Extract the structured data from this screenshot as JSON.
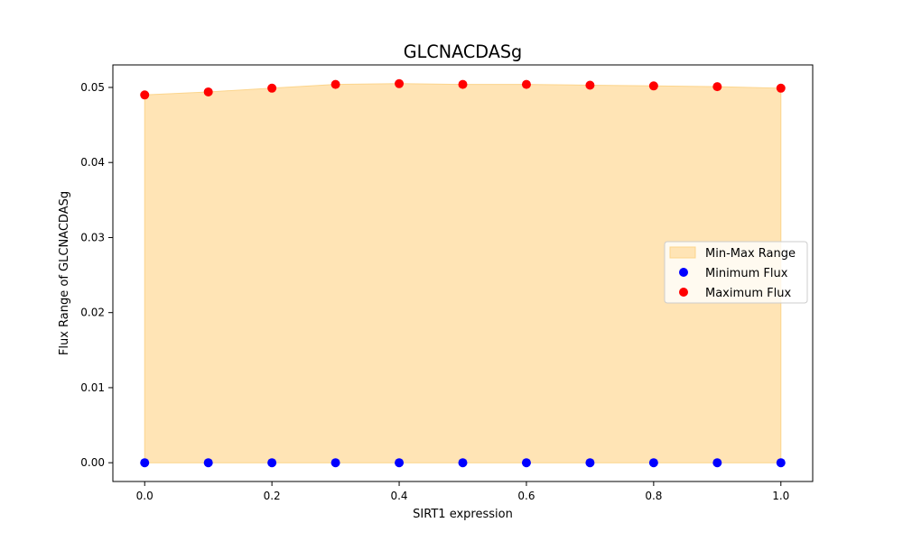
{
  "chart_data": {
    "type": "area",
    "title": "GLCNACDASg",
    "xlabel": "SIRT1 expression",
    "ylabel": "Flux Range of GLCNACDASg",
    "x": [
      0.0,
      0.1,
      0.2,
      0.3,
      0.4,
      0.5,
      0.6,
      0.7,
      0.8,
      0.9,
      1.0
    ],
    "xlim": [
      -0.05,
      1.05
    ],
    "ylim": [
      -0.0025,
      0.053
    ],
    "xticks": [
      "0.0",
      "0.2",
      "0.4",
      "0.6",
      "0.8",
      "1.0"
    ],
    "yticks": [
      "0.00",
      "0.01",
      "0.02",
      "0.03",
      "0.04",
      "0.05"
    ],
    "grid": false,
    "legend_position": "center-right",
    "series": [
      {
        "name": "Min-Max Range",
        "kind": "fill_between",
        "color": "#ffe4b5",
        "edge_color": "#fcd58c",
        "lower": [
          0,
          0,
          0,
          0,
          0,
          0,
          0,
          0,
          0,
          0,
          0
        ],
        "upper": [
          0.049,
          0.0494,
          0.0499,
          0.0504,
          0.0505,
          0.0504,
          0.0504,
          0.0503,
          0.0502,
          0.0501,
          0.0499
        ]
      },
      {
        "name": "Minimum Flux",
        "kind": "scatter",
        "color": "#0000ff",
        "values": [
          0,
          0,
          0,
          0,
          0,
          0,
          0,
          0,
          0,
          0,
          0
        ]
      },
      {
        "name": "Maximum Flux",
        "kind": "scatter",
        "color": "#ff0000",
        "values": [
          0.049,
          0.0494,
          0.0499,
          0.0504,
          0.0505,
          0.0504,
          0.0504,
          0.0503,
          0.0502,
          0.0501,
          0.0499
        ]
      }
    ]
  }
}
